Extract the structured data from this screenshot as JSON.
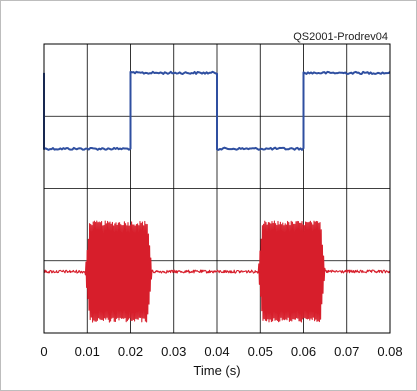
{
  "chart_data": {
    "type": "line",
    "annotation": "QS2001-Prodrev04",
    "xlabel": "Time (s)",
    "ylabel": "",
    "xlim": [
      0,
      0.08
    ],
    "x_ticks": [
      "0",
      "0.01",
      "0.02",
      "0.03",
      "0.04",
      "0.05",
      "0.06",
      "0.07",
      "0.08"
    ],
    "x_divisions": 8,
    "y_divisions": 4,
    "grid": true,
    "series": [
      {
        "color": "#2f4fa0",
        "kind": "square-wave",
        "low_level_div": 2.55,
        "high_level_div": 3.6,
        "edges": [
          {
            "x": 0.0,
            "from": "high",
            "to": "low"
          },
          {
            "x": 0.02,
            "from": "low",
            "to": "high"
          },
          {
            "x": 0.04,
            "from": "high",
            "to": "low"
          },
          {
            "x": 0.06,
            "from": "low",
            "to": "high"
          }
        ],
        "segments": [
          {
            "x_start": 0.0,
            "x_end": 0.02,
            "level": "low"
          },
          {
            "x_start": 0.02,
            "x_end": 0.04,
            "level": "high"
          },
          {
            "x_start": 0.04,
            "x_end": 0.06,
            "level": "low"
          },
          {
            "x_start": 0.06,
            "x_end": 0.08,
            "level": "high"
          }
        ]
      },
      {
        "color": "#d71e2b",
        "kind": "burst",
        "baseline_div": 0.85,
        "burst_amplitude_div": 0.7,
        "bursts": [
          {
            "x_start": 0.0095,
            "x_end": 0.025
          },
          {
            "x_start": 0.0495,
            "x_end": 0.065
          }
        ]
      }
    ]
  }
}
